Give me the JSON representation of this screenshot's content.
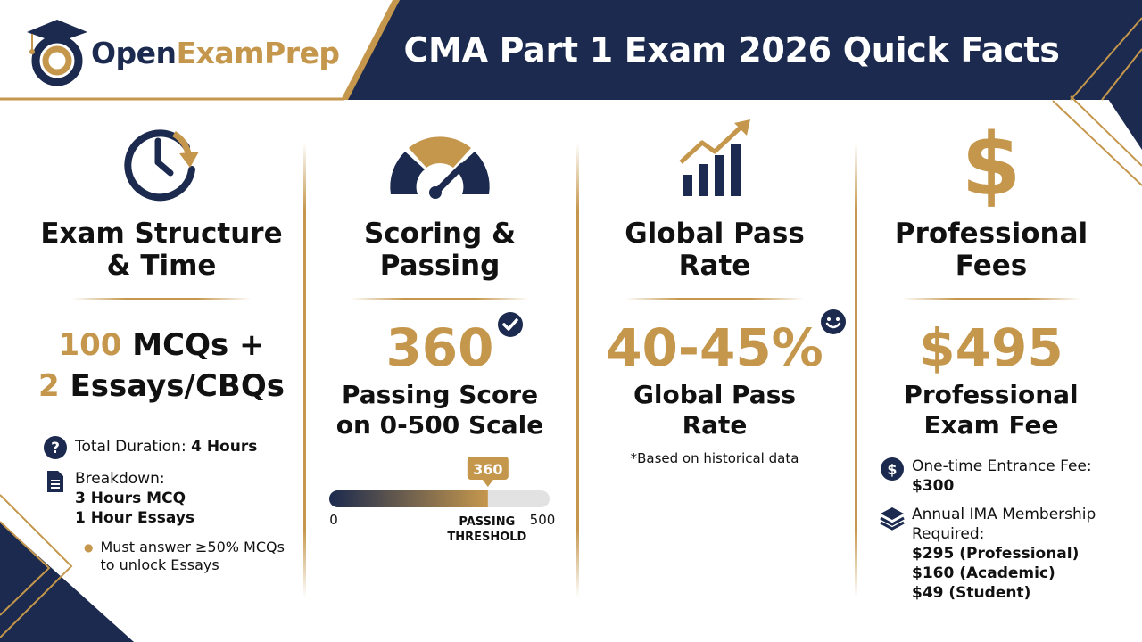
{
  "header": {
    "logo_prefix": "Open",
    "logo_accent": "ExamPrep",
    "title": "CMA Part 1 Exam 2026 Quick Facts"
  },
  "colors": {
    "navy": "#1b2a4e",
    "gold": "#c5974d",
    "track": "#e2e2e2",
    "background": "#ffffff"
  },
  "columns": {
    "structure": {
      "icon": "clock-arrow-icon",
      "title_line1": "Exam Structure",
      "title_line2": "& Time",
      "mcq_count": "100",
      "mcq_label": "MCQs +",
      "essay_count": "2",
      "essay_label": "Essays/CBQs",
      "duration_label": "Total Duration:",
      "duration_value": "4 Hours",
      "breakdown_label": "Breakdown:",
      "breakdown_mcq": "3 Hours MCQ",
      "breakdown_essays": "1 Hour Essays",
      "rule_text_1": "Must answer ≥50% MCQs",
      "rule_text_2": "to unlock Essays"
    },
    "scoring": {
      "icon": "speedometer-icon",
      "title_line1": "Scoring &",
      "title_line2": "Passing",
      "score": "360",
      "score_caption_line1": "Passing Score",
      "score_caption_line2": "on 0-500 Scale",
      "bar": {
        "min_label": "0",
        "max_label": "500",
        "marker_label": "360",
        "threshold_line1": "PASSING",
        "threshold_line2": "THRESHOLD",
        "min": 0,
        "max": 500,
        "value": 360
      }
    },
    "pass_rate": {
      "icon": "growth-chart-icon",
      "title_line1": "Global Pass",
      "title_line2": "Rate",
      "rate": "40-45%",
      "rate_caption_line1": "Global Pass",
      "rate_caption_line2": "Rate",
      "footnote": "*Based on historical data"
    },
    "fees": {
      "icon": "dollar-sign-icon",
      "title_line1": "Professional",
      "title_line2": "Fees",
      "fee": "$495",
      "fee_caption_line1": "Professional",
      "fee_caption_line2": "Exam Fee",
      "entrance_label": "One-time Entrance Fee:",
      "entrance_value": "$300",
      "membership_label_1": "Annual IMA Membership",
      "membership_label_2": "Required:",
      "membership_professional": "$295 (Professional)",
      "membership_academic": "$160 (Academic)",
      "membership_student": "$49 (Student)"
    }
  }
}
